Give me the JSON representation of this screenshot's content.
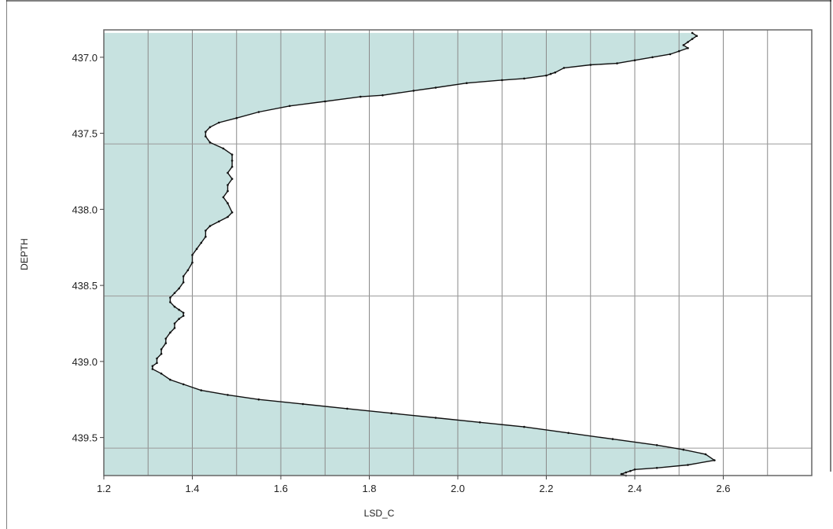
{
  "chart_data": {
    "type": "area",
    "title": "",
    "xlabel": "LSD_C",
    "ylabel": "DEPTH",
    "xlim": [
      1.2,
      2.8
    ],
    "ylim": [
      436.82,
      439.75
    ],
    "y_inverted": true,
    "grid": true,
    "legend": "none",
    "x_ticks": [
      {
        "v": 1.2,
        "label": "1.2"
      },
      {
        "v": 1.4,
        "label": "1.4"
      },
      {
        "v": 1.6,
        "label": "1.6"
      },
      {
        "v": 1.8,
        "label": "1.8"
      },
      {
        "v": 2.0,
        "label": "2.0"
      },
      {
        "v": 2.2,
        "label": "2.2"
      },
      {
        "v": 2.4,
        "label": "2.4"
      },
      {
        "v": 2.6,
        "label": "2.6"
      }
    ],
    "x_minor_grid": [
      1.3,
      1.5,
      1.7,
      1.9,
      2.1,
      2.3,
      2.5,
      2.7
    ],
    "y_ticks": [
      {
        "v": 437.0,
        "label": "437.0"
      },
      {
        "v": 437.5,
        "label": "437.5"
      },
      {
        "v": 438.0,
        "label": "438.0"
      },
      {
        "v": 438.5,
        "label": "438.5"
      },
      {
        "v": 439.0,
        "label": "439.0"
      },
      {
        "v": 439.5,
        "label": "439.5"
      }
    ],
    "y_grid": [
      437.57,
      438.57,
      439.57
    ],
    "fill_color": "#c7e2e0",
    "line_color": "#111111",
    "series": [
      {
        "x": [
          2.53,
          2.54,
          2.53,
          2.52,
          2.51,
          2.52,
          2.5,
          2.48,
          2.44,
          2.4,
          2.36,
          2.3,
          2.24,
          2.22,
          2.21,
          2.2,
          2.15,
          2.1,
          2.02,
          1.95,
          1.9,
          1.83,
          1.78,
          1.7,
          1.62,
          1.55,
          1.5,
          1.46,
          1.44,
          1.43,
          1.43,
          1.44,
          1.47,
          1.49,
          1.49,
          1.49,
          1.48,
          1.49,
          1.48,
          1.48,
          1.47,
          1.48,
          1.49,
          1.48,
          1.46,
          1.44,
          1.43,
          1.43,
          1.42,
          1.41,
          1.4,
          1.4,
          1.39,
          1.38,
          1.38,
          1.37,
          1.36,
          1.35,
          1.35,
          1.36,
          1.37,
          1.38,
          1.38,
          1.37,
          1.36,
          1.36,
          1.35,
          1.34,
          1.34,
          1.33,
          1.33,
          1.32,
          1.32,
          1.31,
          1.31,
          1.33,
          1.35,
          1.38,
          1.42,
          1.48,
          1.55,
          1.65,
          1.75,
          1.85,
          1.95,
          2.05,
          2.15,
          2.25,
          2.35,
          2.45,
          2.51,
          2.56,
          2.58,
          2.52,
          2.45,
          2.4,
          2.39,
          2.38,
          2.37,
          2.38
        ],
        "y": [
          436.84,
          436.86,
          436.88,
          436.9,
          436.92,
          436.94,
          436.96,
          436.98,
          437.0,
          437.02,
          437.04,
          437.05,
          437.07,
          437.1,
          437.11,
          437.12,
          437.14,
          437.15,
          437.17,
          437.2,
          437.22,
          437.25,
          437.26,
          437.29,
          437.32,
          437.36,
          437.4,
          437.43,
          437.46,
          437.49,
          437.52,
          437.56,
          437.6,
          437.64,
          437.68,
          437.72,
          437.76,
          437.8,
          437.84,
          437.88,
          437.92,
          437.96,
          438.02,
          438.05,
          438.08,
          438.11,
          438.14,
          438.18,
          438.22,
          438.26,
          438.3,
          438.35,
          438.4,
          438.44,
          438.48,
          438.52,
          438.55,
          438.58,
          438.61,
          438.64,
          438.66,
          438.68,
          438.7,
          438.72,
          438.75,
          438.78,
          438.81,
          438.85,
          438.88,
          438.92,
          438.95,
          438.98,
          439.01,
          439.03,
          439.05,
          439.08,
          439.12,
          439.15,
          439.19,
          439.22,
          439.25,
          439.28,
          439.31,
          439.34,
          439.37,
          439.4,
          439.43,
          439.47,
          439.51,
          439.55,
          439.58,
          439.61,
          439.65,
          439.68,
          439.7,
          439.71,
          439.72,
          439.73,
          439.74,
          439.75
        ]
      }
    ]
  }
}
